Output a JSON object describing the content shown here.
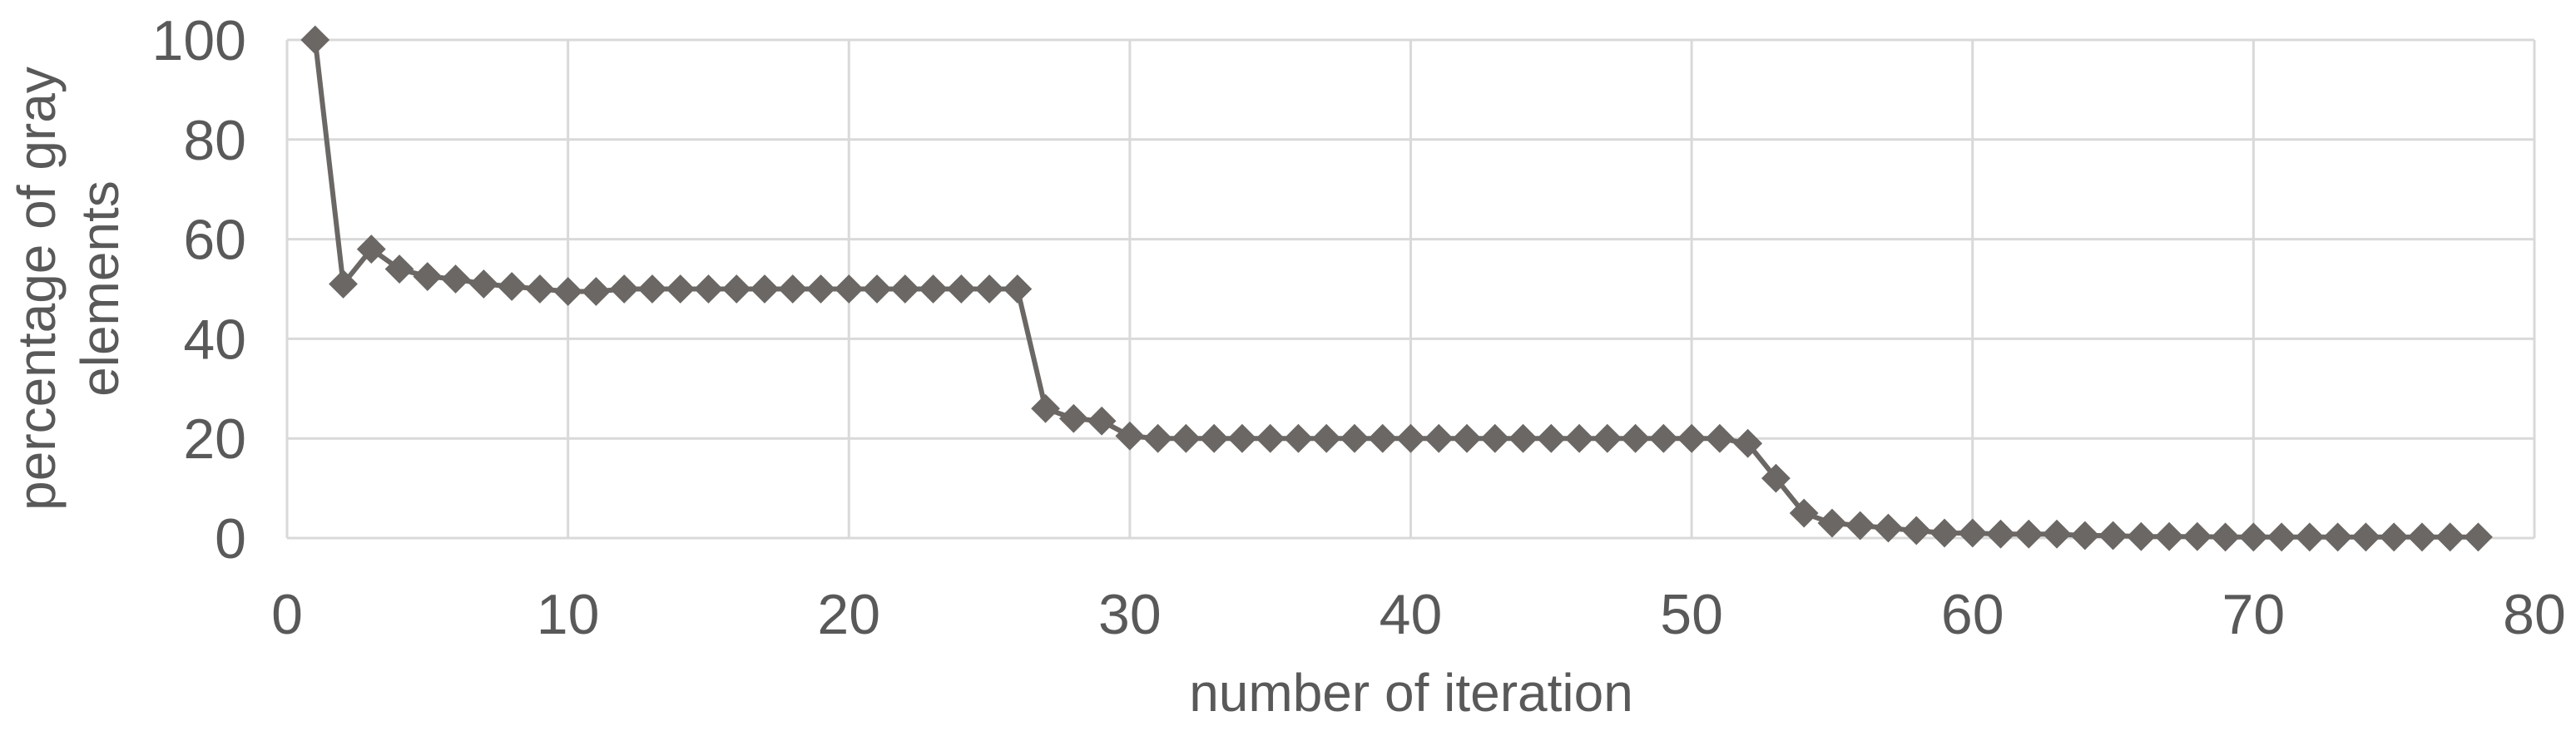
{
  "chart_data": {
    "type": "line",
    "title": "",
    "xlabel": "number of iteration",
    "ylabel": "percentage of gray elements",
    "ylabel_line1": "percentage of gray",
    "ylabel_line2": "elements",
    "x_ticks": [
      "0",
      "10",
      "20",
      "30",
      "40",
      "50",
      "60",
      "70",
      "80"
    ],
    "y_ticks": [
      "0",
      "20",
      "40",
      "60",
      "80",
      "100"
    ],
    "xlim": [
      0,
      80
    ],
    "ylim": [
      0,
      100
    ],
    "grid": true,
    "legend_position": "none",
    "marker": "diamond",
    "x": [
      1,
      2,
      3,
      4,
      5,
      6,
      7,
      8,
      9,
      10,
      11,
      12,
      13,
      14,
      15,
      16,
      17,
      18,
      19,
      20,
      21,
      22,
      23,
      24,
      25,
      26,
      27,
      28,
      29,
      30,
      31,
      32,
      33,
      34,
      35,
      36,
      37,
      38,
      39,
      40,
      41,
      42,
      43,
      44,
      45,
      46,
      47,
      48,
      49,
      50,
      51,
      52,
      53,
      54,
      55,
      56,
      57,
      58,
      59,
      60,
      61,
      62,
      63,
      64,
      65,
      66,
      67,
      68,
      69,
      70,
      71,
      72,
      73,
      74,
      75,
      76,
      77,
      78
    ],
    "values": [
      100,
      51,
      58,
      54,
      52.5,
      52,
      51,
      50.5,
      50,
      49.5,
      49.5,
      50,
      50,
      50,
      50,
      50,
      50,
      50,
      50,
      50,
      50,
      50,
      50,
      50,
      50,
      50,
      26,
      24,
      23.5,
      20.5,
      20,
      20,
      20,
      20,
      20,
      20,
      20,
      20,
      20,
      20,
      20,
      20,
      20,
      20,
      20,
      20,
      20,
      20,
      20,
      20,
      20,
      19,
      12,
      5,
      3,
      2.5,
      2,
      1.5,
      1,
      1,
      0.8,
      0.8,
      0.8,
      0.5,
      0.5,
      0.3,
      0.3,
      0.3,
      0.2,
      0.2,
      0.2,
      0.2,
      0.2,
      0.2,
      0.2,
      0.2,
      0.2,
      0.2
    ],
    "colors": {
      "series": "#6b6764",
      "grid": "#d9d9d9",
      "text": "#595959",
      "background": "#ffffff"
    }
  }
}
